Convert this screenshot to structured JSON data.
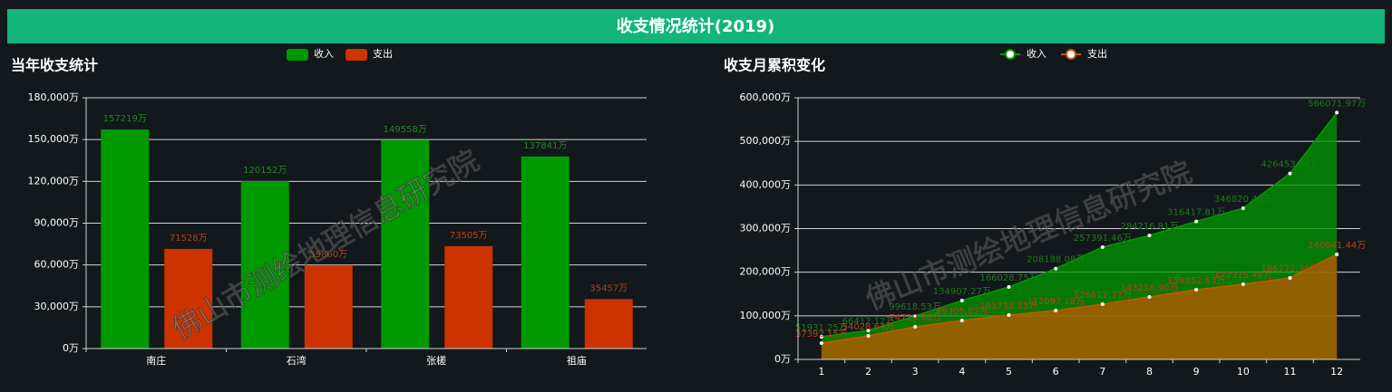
{
  "header": {
    "title": "收支情况统计(2019)"
  },
  "watermark": [
    "佛山市测绘地理信息研究院",
    "佛山市测绘地理信息研究院"
  ],
  "chart_data": [
    {
      "type": "bar",
      "title": "当年收支统计",
      "categories": [
        "南庄",
        "石湾",
        "张槎",
        "祖庙"
      ],
      "series": [
        {
          "name": "收入",
          "color": "#009900",
          "values": [
            157219,
            120152,
            149558,
            137841
          ],
          "value_labels": [
            "157219万",
            "120152万",
            "149558万",
            "137841万"
          ]
        },
        {
          "name": "支出",
          "color": "#cc3300",
          "values": [
            71528,
            59860,
            73505,
            35457
          ],
          "value_labels": [
            "71528万",
            "59860万",
            "73505万",
            "35457万"
          ]
        }
      ],
      "ylim": [
        0,
        180000
      ],
      "yticks": [
        {
          "value": 0,
          "label": "0万"
        },
        {
          "value": 30000,
          "label": "30,000万"
        },
        {
          "value": 60000,
          "label": "60,000万"
        },
        {
          "value": 90000,
          "label": "90,000万"
        },
        {
          "value": 120000,
          "label": "120,000万"
        },
        {
          "value": 150000,
          "label": "150,000万"
        },
        {
          "value": 180000,
          "label": "180,000万"
        }
      ],
      "grid": true
    },
    {
      "type": "area",
      "title": "收支月累积变化",
      "categories": [
        "1",
        "2",
        "3",
        "4",
        "5",
        "6",
        "7",
        "8",
        "9",
        "10",
        "11",
        "12"
      ],
      "series": [
        {
          "name": "收入",
          "color": "#009900",
          "values": [
            51931.25,
            66412.12,
            99618.53,
            134907.27,
            166028.75,
            208188.08,
            257391.46,
            284216.81,
            316417.81,
            346820.4,
            426453.86,
            566071.97
          ],
          "value_labels": [
            "51931.25万",
            "66412.12万",
            "99618.53万",
            "134907.27万",
            "166028.75万",
            "208188.08万",
            "257391.46万",
            "284216.81万",
            "316417.81万",
            "346820.40万",
            "426453.86万",
            "566071.97万"
          ]
        },
        {
          "name": "支出",
          "color": "#cc5500",
          "values": [
            37392.15,
            54028.64,
            74719.3,
            89305.02,
            101718.55,
            112097.18,
            126612.37,
            143218.9,
            159852.63,
            172315.48,
            186772.39,
            240941.44
          ],
          "value_labels": [
            "37392.15万",
            "54028.64万",
            "74719.30万",
            "89305.02万",
            "101718.55万",
            "112097.18万",
            "126612.37万",
            "143218.90万",
            "159852.63万",
            "172315.48万",
            "186772.39万",
            "240941.44万"
          ]
        }
      ],
      "ylim": [
        0,
        600000
      ],
      "yticks": [
        {
          "value": 0,
          "label": "0万"
        },
        {
          "value": 100000,
          "label": "100,000万"
        },
        {
          "value": 200000,
          "label": "200,000万"
        },
        {
          "value": 300000,
          "label": "300,000万"
        },
        {
          "value": 400000,
          "label": "400,000万"
        },
        {
          "value": 500000,
          "label": "500,000万"
        },
        {
          "value": 600000,
          "label": "600,000万"
        }
      ],
      "grid": true
    }
  ]
}
